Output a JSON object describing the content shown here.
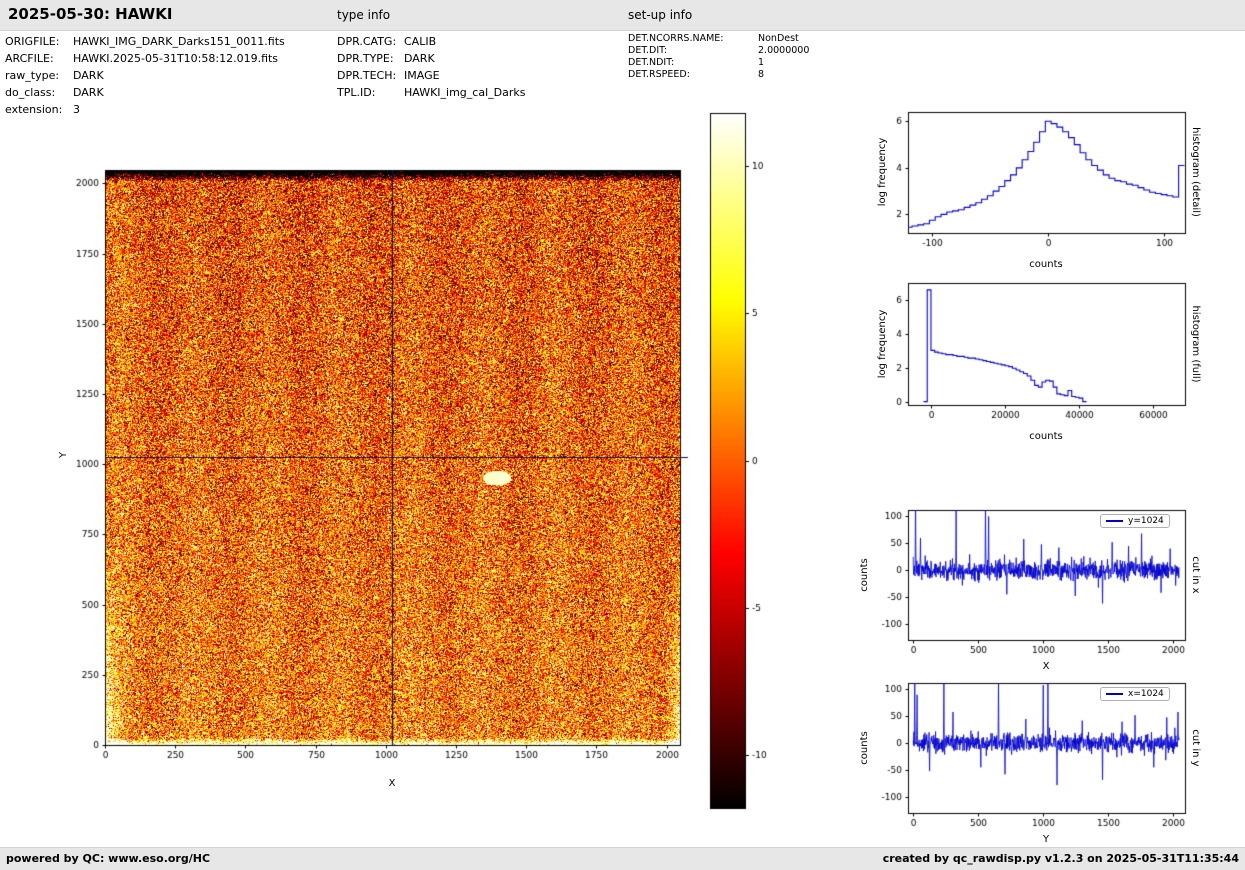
{
  "header": {
    "title": "2025-05-30: HAWKI",
    "type_info_label": "type info",
    "setup_info_label": "set-up info"
  },
  "file_info": {
    "rows": [
      {
        "label": "ORIGFILE:",
        "value": "HAWKI_IMG_DARK_Darks151_0011.fits"
      },
      {
        "label": "ARCFILE:",
        "value": "HAWKI.2025-05-31T10:58:12.019.fits"
      },
      {
        "label": "raw_type:",
        "value": "DARK"
      },
      {
        "label": "do_class:",
        "value": "DARK"
      },
      {
        "label": "extension:",
        "value": "3"
      }
    ]
  },
  "type_info": {
    "rows": [
      {
        "label": "DPR.CATG:",
        "value": "CALIB"
      },
      {
        "label": "DPR.TYPE:",
        "value": "DARK"
      },
      {
        "label": "DPR.TECH:",
        "value": "IMAGE"
      },
      {
        "label": "TPL.ID:",
        "value": "HAWKI_img_cal_Darks"
      }
    ]
  },
  "setup_info": {
    "rows": [
      {
        "label": "DET.NCORRS.NAME:",
        "value": "NonDest"
      },
      {
        "label": "DET.DIT:",
        "value": "2.0000000"
      },
      {
        "label": "DET.NDIT:",
        "value": "1"
      },
      {
        "label": "DET.RSPEED:",
        "value": "8"
      }
    ]
  },
  "footer": {
    "left": "powered by QC: www.eso.org/HC",
    "right": "created by qc_rawdisp.py v1.2.3 on 2025-05-31T11:35:44"
  },
  "chart_data": [
    {
      "id": "dark_frame",
      "type": "heatmap",
      "description": "2048x2048 raw dark frame; noisy speckle in hot colormap, dark band at top edge, bright rim along bottom edge rising up left/right sides, faint white blob near (1400,950), crosshair cut lines at x=1024 and y=1024",
      "xlabel": "X",
      "ylabel": "Y",
      "xrange": [
        0,
        2048
      ],
      "yrange": [
        0,
        2048
      ],
      "xticks": [
        0,
        250,
        500,
        750,
        1000,
        1250,
        1500,
        1750,
        2000
      ],
      "yticks": [
        0,
        250,
        500,
        750,
        1000,
        1250,
        1500,
        1750,
        2000
      ],
      "colormap": "hot",
      "colorbar": {
        "range": [
          -11.8,
          11.8
        ],
        "ticks": [
          10,
          5,
          0,
          -5,
          -10
        ]
      },
      "crosshair": {
        "x": 1024,
        "y": 1024
      },
      "crosshair_color": "#10104f"
    },
    {
      "id": "histogram_detail",
      "type": "line",
      "step": true,
      "right_label": "histogram (detail)",
      "xlabel": "counts",
      "ylabel": "log frequency",
      "color": "#0000cc",
      "xrange": [
        -121,
        118
      ],
      "yrange": [
        1.2,
        6.4
      ],
      "xticks": [
        -100,
        0,
        100
      ],
      "yticks": [
        2,
        4,
        6
      ],
      "bin_halfwidth": 2.5,
      "x": [
        -120,
        -115,
        -110,
        -105,
        -100,
        -95,
        -90,
        -85,
        -80,
        -75,
        -70,
        -65,
        -60,
        -55,
        -50,
        -45,
        -40,
        -35,
        -30,
        -25,
        -20,
        -15,
        -10,
        -5,
        0,
        5,
        10,
        15,
        20,
        25,
        30,
        35,
        40,
        45,
        50,
        55,
        60,
        65,
        70,
        75,
        80,
        85,
        90,
        95,
        100,
        105,
        110,
        115
      ],
      "y": [
        1.45,
        1.5,
        1.55,
        1.6,
        1.75,
        1.9,
        2.0,
        2.1,
        2.15,
        2.2,
        2.3,
        2.4,
        2.5,
        2.65,
        2.8,
        3.0,
        3.2,
        3.45,
        3.7,
        4.0,
        4.35,
        4.7,
        5.1,
        5.55,
        6.0,
        5.9,
        5.75,
        5.55,
        5.3,
        5.0,
        4.65,
        4.35,
        4.1,
        3.9,
        3.7,
        3.55,
        3.45,
        3.4,
        3.3,
        3.25,
        3.15,
        3.05,
        2.95,
        2.9,
        2.85,
        2.8,
        2.75,
        4.1
      ]
    },
    {
      "id": "histogram_full",
      "type": "line",
      "step": true,
      "right_label": "histogram (full)",
      "xlabel": "counts",
      "ylabel": "log frequency",
      "color": "#0000cc",
      "xrange": [
        -6200,
        68600
      ],
      "yrange": [
        -0.15,
        7.0
      ],
      "xticks": [
        0,
        20000,
        40000,
        60000
      ],
      "yticks": [
        0,
        2,
        4,
        6
      ],
      "bin_halfwidth": 500,
      "x": [
        -1500,
        -500,
        500,
        1500,
        2500,
        3500,
        4500,
        5500,
        6500,
        7500,
        8500,
        9500,
        10500,
        11500,
        12500,
        13500,
        14500,
        15500,
        16500,
        17500,
        18500,
        19500,
        20500,
        21500,
        22500,
        23500,
        24500,
        25500,
        26500,
        27500,
        28500,
        29500,
        30500,
        31500,
        32500,
        33500,
        34500,
        35500,
        36500,
        37500,
        38500,
        39500,
        40500,
        41500
      ],
      "y": [
        0.05,
        6.6,
        3.05,
        2.95,
        2.9,
        2.85,
        2.8,
        2.8,
        2.75,
        2.7,
        2.7,
        2.65,
        2.6,
        2.6,
        2.55,
        2.5,
        2.45,
        2.4,
        2.35,
        2.3,
        2.25,
        2.2,
        2.15,
        2.1,
        2.0,
        1.9,
        1.8,
        1.7,
        1.55,
        1.3,
        1.0,
        0.9,
        1.2,
        1.3,
        1.25,
        0.9,
        0.5,
        0.45,
        0.4,
        0.7,
        0.35,
        0.3,
        0.25,
        0.05
      ]
    },
    {
      "id": "cut_x",
      "type": "line",
      "right_label": "cut in x",
      "xlabel": "X",
      "ylabel": "counts",
      "legend": "y=1024",
      "color": "#0000cc",
      "xrange": [
        -40,
        2090
      ],
      "yrange": [
        -130,
        112
      ],
      "xticks": [
        0,
        500,
        1000,
        1500,
        2000
      ],
      "yticks": [
        -100,
        -50,
        0,
        50,
        100
      ],
      "noise_sd": 9,
      "seed": 7,
      "spikes": [
        [
          18,
          138
        ],
        [
          55,
          60
        ],
        [
          330,
          112
        ],
        [
          555,
          128
        ],
        [
          580,
          100
        ],
        [
          720,
          -45
        ],
        [
          850,
          58
        ],
        [
          985,
          48
        ],
        [
          1120,
          42
        ],
        [
          1245,
          -48
        ],
        [
          1455,
          -62
        ],
        [
          1530,
          52
        ],
        [
          1655,
          45
        ],
        [
          1755,
          68
        ],
        [
          1905,
          -42
        ],
        [
          1975,
          40
        ]
      ]
    },
    {
      "id": "cut_y",
      "type": "line",
      "right_label": "cut in y",
      "xlabel": "Y",
      "ylabel": "counts",
      "legend": "x=1024",
      "color": "#0000cc",
      "xrange": [
        -40,
        2090
      ],
      "yrange": [
        -130,
        112
      ],
      "xticks": [
        0,
        500,
        1000,
        1500,
        2000
      ],
      "yticks": [
        -100,
        -50,
        0,
        50,
        100
      ],
      "noise_sd": 9,
      "seed": 99,
      "spikes": [
        [
          12,
          135
        ],
        [
          30,
          90
        ],
        [
          125,
          -52
        ],
        [
          235,
          112
        ],
        [
          305,
          58
        ],
        [
          520,
          -45
        ],
        [
          655,
          115
        ],
        [
          705,
          -58
        ],
        [
          865,
          45
        ],
        [
          1000,
          108
        ],
        [
          1035,
          122
        ],
        [
          1105,
          -78
        ],
        [
          1300,
          42
        ],
        [
          1455,
          -68
        ],
        [
          1605,
          40
        ],
        [
          1705,
          52
        ],
        [
          1850,
          -45
        ],
        [
          1950,
          48
        ],
        [
          2035,
          58
        ]
      ]
    }
  ]
}
